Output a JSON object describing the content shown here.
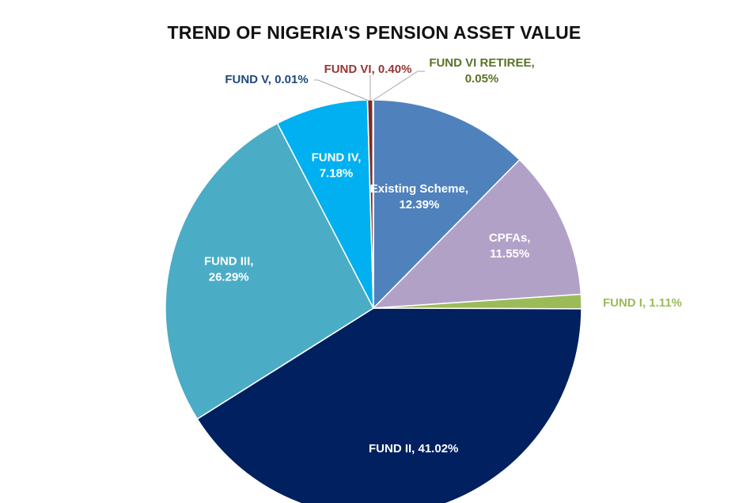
{
  "chart_data": {
    "type": "pie",
    "title": "TREND OF NIGERIA'S PENSION ASSET VALUE",
    "slices": [
      {
        "name": "Existing Scheme",
        "value": 12.39,
        "label_lines": [
          "Existing Scheme,",
          "12.39%"
        ],
        "color": "#4f81bd",
        "label_color": "#ffffff"
      },
      {
        "name": "CPFAs",
        "value": 11.55,
        "label_lines": [
          "CPFAs,",
          "11.55%"
        ],
        "color": "#b2a1c7",
        "label_color": "#ffffff"
      },
      {
        "name": "FUND I",
        "value": 1.11,
        "label_lines": [
          "FUND I, 1.11%"
        ],
        "color": "#9bbb59",
        "label_color": "#9bbb59"
      },
      {
        "name": "FUND II",
        "value": 41.02,
        "label_lines": [
          "FUND II, 41.02%"
        ],
        "color": "#002060",
        "label_color": "#ffffff"
      },
      {
        "name": "FUND III",
        "value": 26.29,
        "label_lines": [
          "FUND III,",
          "26.29%"
        ],
        "color": "#4bacc6",
        "label_color": "#ffffff"
      },
      {
        "name": "FUND IV",
        "value": 7.18,
        "label_lines": [
          "FUND IV,",
          "7.18%"
        ],
        "color": "#00b0f0",
        "label_color": "#ffffff"
      },
      {
        "name": "FUND V",
        "value": 0.01,
        "label_lines": [
          "FUND V, 0.01%"
        ],
        "color": "#1f497d",
        "label_color": "#1f497d"
      },
      {
        "name": "FUND VI",
        "value": 0.4,
        "label_lines": [
          "FUND VI, 0.40%"
        ],
        "color": "#7f2a24",
        "label_color": "#953735"
      },
      {
        "name": "FUND VI RETIREE",
        "value": 0.05,
        "label_lines": [
          "FUND VI RETIREE,",
          "0.05%"
        ],
        "color": "#4f6228",
        "label_color": "#5a7228"
      }
    ]
  }
}
